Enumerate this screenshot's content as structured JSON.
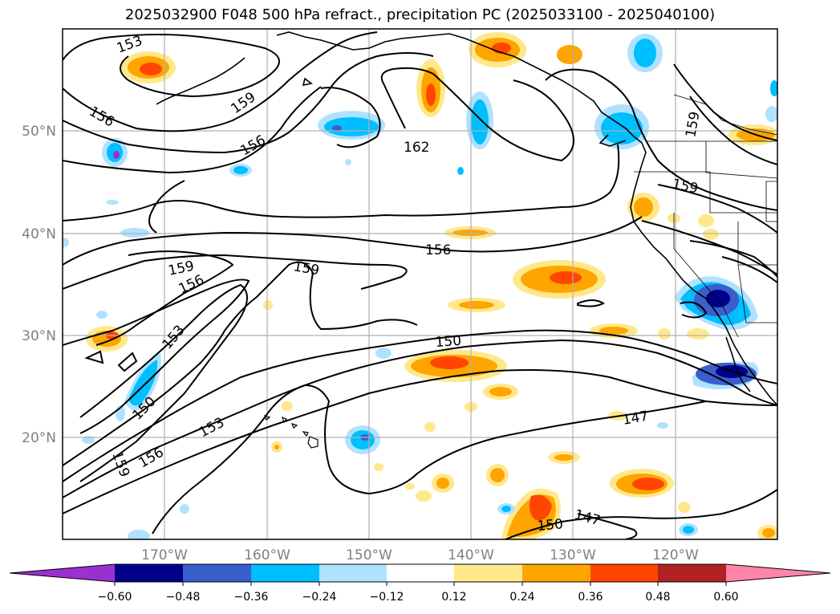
{
  "title": "2025032900 F048 500 hPa refract., precipitation PC (2025033100 - 2025040100)",
  "map": {
    "lat_labels": [
      "50°N",
      "40°N",
      "30°N",
      "20°N"
    ],
    "lon_labels": [
      "170°W",
      "160°W",
      "150°W",
      "140°W",
      "130°W",
      "120°W"
    ],
    "contour_labels": [
      "153",
      "156",
      "159",
      "156",
      "162",
      "159",
      "159",
      "156",
      "159",
      "156",
      "159",
      "153",
      "150",
      "150",
      "153",
      "156",
      "159",
      "147",
      "147",
      "150"
    ]
  },
  "colorbar": {
    "ticks": [
      "−0.60",
      "−0.48",
      "−0.36",
      "−0.24",
      "−0.12",
      "0.12",
      "0.24",
      "0.36",
      "0.48",
      "0.60"
    ],
    "colors": [
      "#9b30d0",
      "#00008b",
      "#3a5fcd",
      "#00bfff",
      "#b0e2ff",
      "#ffffff",
      "#ffe88a",
      "#ffa500",
      "#ff4500",
      "#b22222",
      "#ff85a8"
    ]
  },
  "colors": {
    "frame": "#000000",
    "grid": "#b0b0b0",
    "tick_label": "#808080"
  }
}
